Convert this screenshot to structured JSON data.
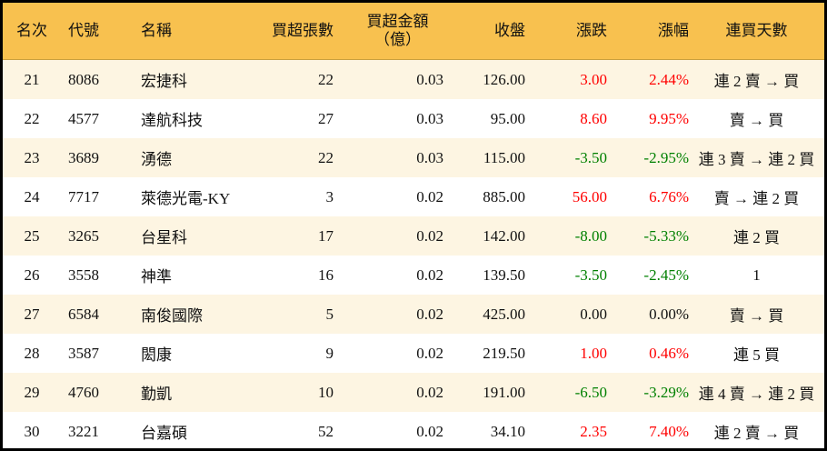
{
  "headers": [
    "名次",
    "代號",
    "名稱",
    "買超張數",
    "買超金額",
    "（億）",
    "收盤",
    "漲跌",
    "漲幅",
    "連買天數"
  ],
  "colors": {
    "header_bg": "#F8C14F",
    "odd_row_bg": "#FDF5E2",
    "up": "#FF0000",
    "down": "#008000"
  },
  "rows": [
    {
      "rank": "21",
      "code": "8086",
      "name": "宏捷科",
      "lots": "22",
      "amount": "0.03",
      "close": "126.00",
      "change": "3.00",
      "pct": "2.44%",
      "trend": "up",
      "streak": "連 2 賣 → 買"
    },
    {
      "rank": "22",
      "code": "4577",
      "name": "達航科技",
      "lots": "27",
      "amount": "0.03",
      "close": "95.00",
      "change": "8.60",
      "pct": "9.95%",
      "trend": "up",
      "streak": "賣 → 買"
    },
    {
      "rank": "23",
      "code": "3689",
      "name": "湧德",
      "lots": "22",
      "amount": "0.03",
      "close": "115.00",
      "change": "-3.50",
      "pct": "-2.95%",
      "trend": "down",
      "streak": "連 3 賣 → 連 2 買"
    },
    {
      "rank": "24",
      "code": "7717",
      "name": "萊德光電-KY",
      "lots": "3",
      "amount": "0.02",
      "close": "885.00",
      "change": "56.00",
      "pct": "6.76%",
      "trend": "up",
      "streak": "賣 → 連 2 買"
    },
    {
      "rank": "25",
      "code": "3265",
      "name": "台星科",
      "lots": "17",
      "amount": "0.02",
      "close": "142.00",
      "change": "-8.00",
      "pct": "-5.33%",
      "trend": "down",
      "streak": "連 2 買"
    },
    {
      "rank": "26",
      "code": "3558",
      "name": "神準",
      "lots": "16",
      "amount": "0.02",
      "close": "139.50",
      "change": "-3.50",
      "pct": "-2.45%",
      "trend": "down",
      "streak": "1"
    },
    {
      "rank": "27",
      "code": "6584",
      "name": "南俊國際",
      "lots": "5",
      "amount": "0.02",
      "close": "425.00",
      "change": "0.00",
      "pct": "0.00%",
      "trend": "flat",
      "streak": "賣 → 買"
    },
    {
      "rank": "28",
      "code": "3587",
      "name": "閎康",
      "lots": "9",
      "amount": "0.02",
      "close": "219.50",
      "change": "1.00",
      "pct": "0.46%",
      "trend": "up",
      "streak": "連 5 買"
    },
    {
      "rank": "29",
      "code": "4760",
      "name": "勤凱",
      "lots": "10",
      "amount": "0.02",
      "close": "191.00",
      "change": "-6.50",
      "pct": "-3.29%",
      "trend": "down",
      "streak": "連 4 賣 → 連 2 買"
    },
    {
      "rank": "30",
      "code": "3221",
      "name": "台嘉碩",
      "lots": "52",
      "amount": "0.02",
      "close": "34.10",
      "change": "2.35",
      "pct": "7.40%",
      "trend": "up",
      "streak": "連 2 賣 → 買"
    }
  ]
}
